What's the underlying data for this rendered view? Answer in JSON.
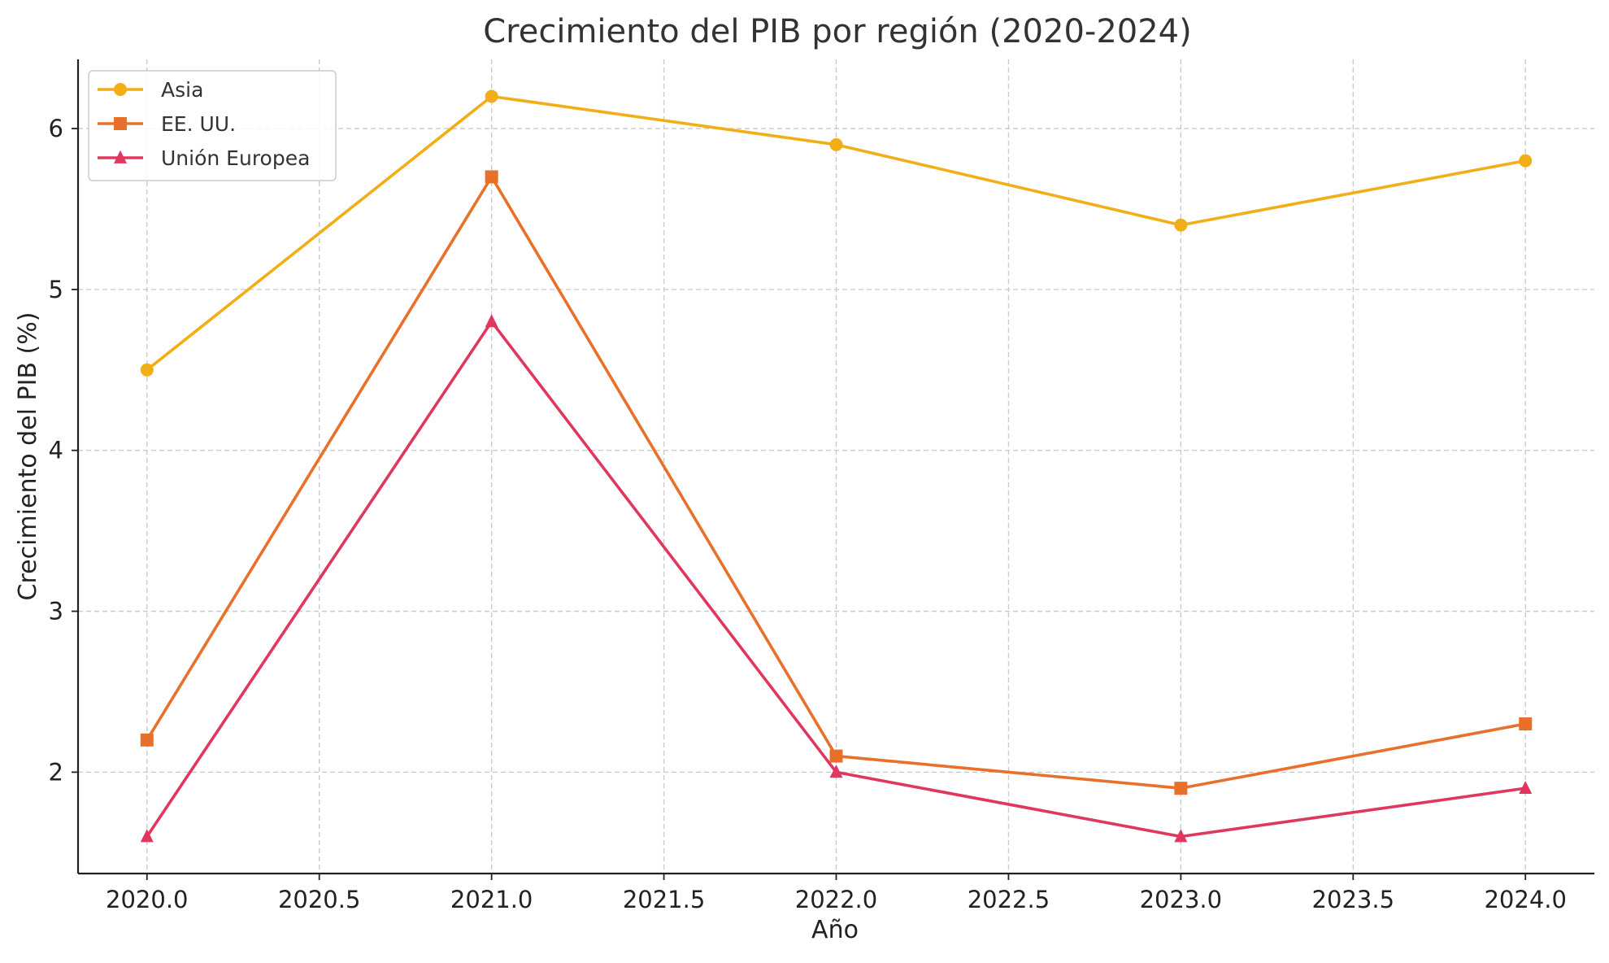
{
  "chart_data": {
    "type": "line",
    "title": "Crecimiento del PIB por región (2020-2024)",
    "xlabel": "Año",
    "ylabel": "Crecimiento del PIB (%)",
    "x": [
      2020,
      2021,
      2022,
      2023,
      2024
    ],
    "xlim": [
      2019.8,
      2024.2
    ],
    "ylim": [
      1.37,
      6.43
    ],
    "x_ticks": [
      2020.0,
      2020.5,
      2021.0,
      2021.5,
      2022.0,
      2022.5,
      2023.0,
      2023.5,
      2024.0
    ],
    "x_tick_labels": [
      "2020.0",
      "2020.5",
      "2021.0",
      "2021.5",
      "2022.0",
      "2022.5",
      "2023.0",
      "2023.5",
      "2024.0"
    ],
    "y_ticks": [
      2,
      3,
      4,
      5,
      6
    ],
    "y_tick_labels": [
      "2",
      "3",
      "4",
      "5",
      "6"
    ],
    "grid": true,
    "legend_position": "top-left",
    "series": [
      {
        "name": "Asia",
        "values": [
          4.5,
          6.2,
          5.9,
          5.4,
          5.8
        ],
        "color": "#F2AE16",
        "marker": "circle"
      },
      {
        "name": "EE. UU.",
        "values": [
          2.2,
          5.7,
          2.1,
          1.9,
          2.3
        ],
        "color": "#E8702A",
        "marker": "square"
      },
      {
        "name": "Unión Europea",
        "values": [
          1.6,
          4.8,
          2.0,
          1.6,
          1.9
        ],
        "color": "#E0375F",
        "marker": "triangle"
      }
    ]
  }
}
